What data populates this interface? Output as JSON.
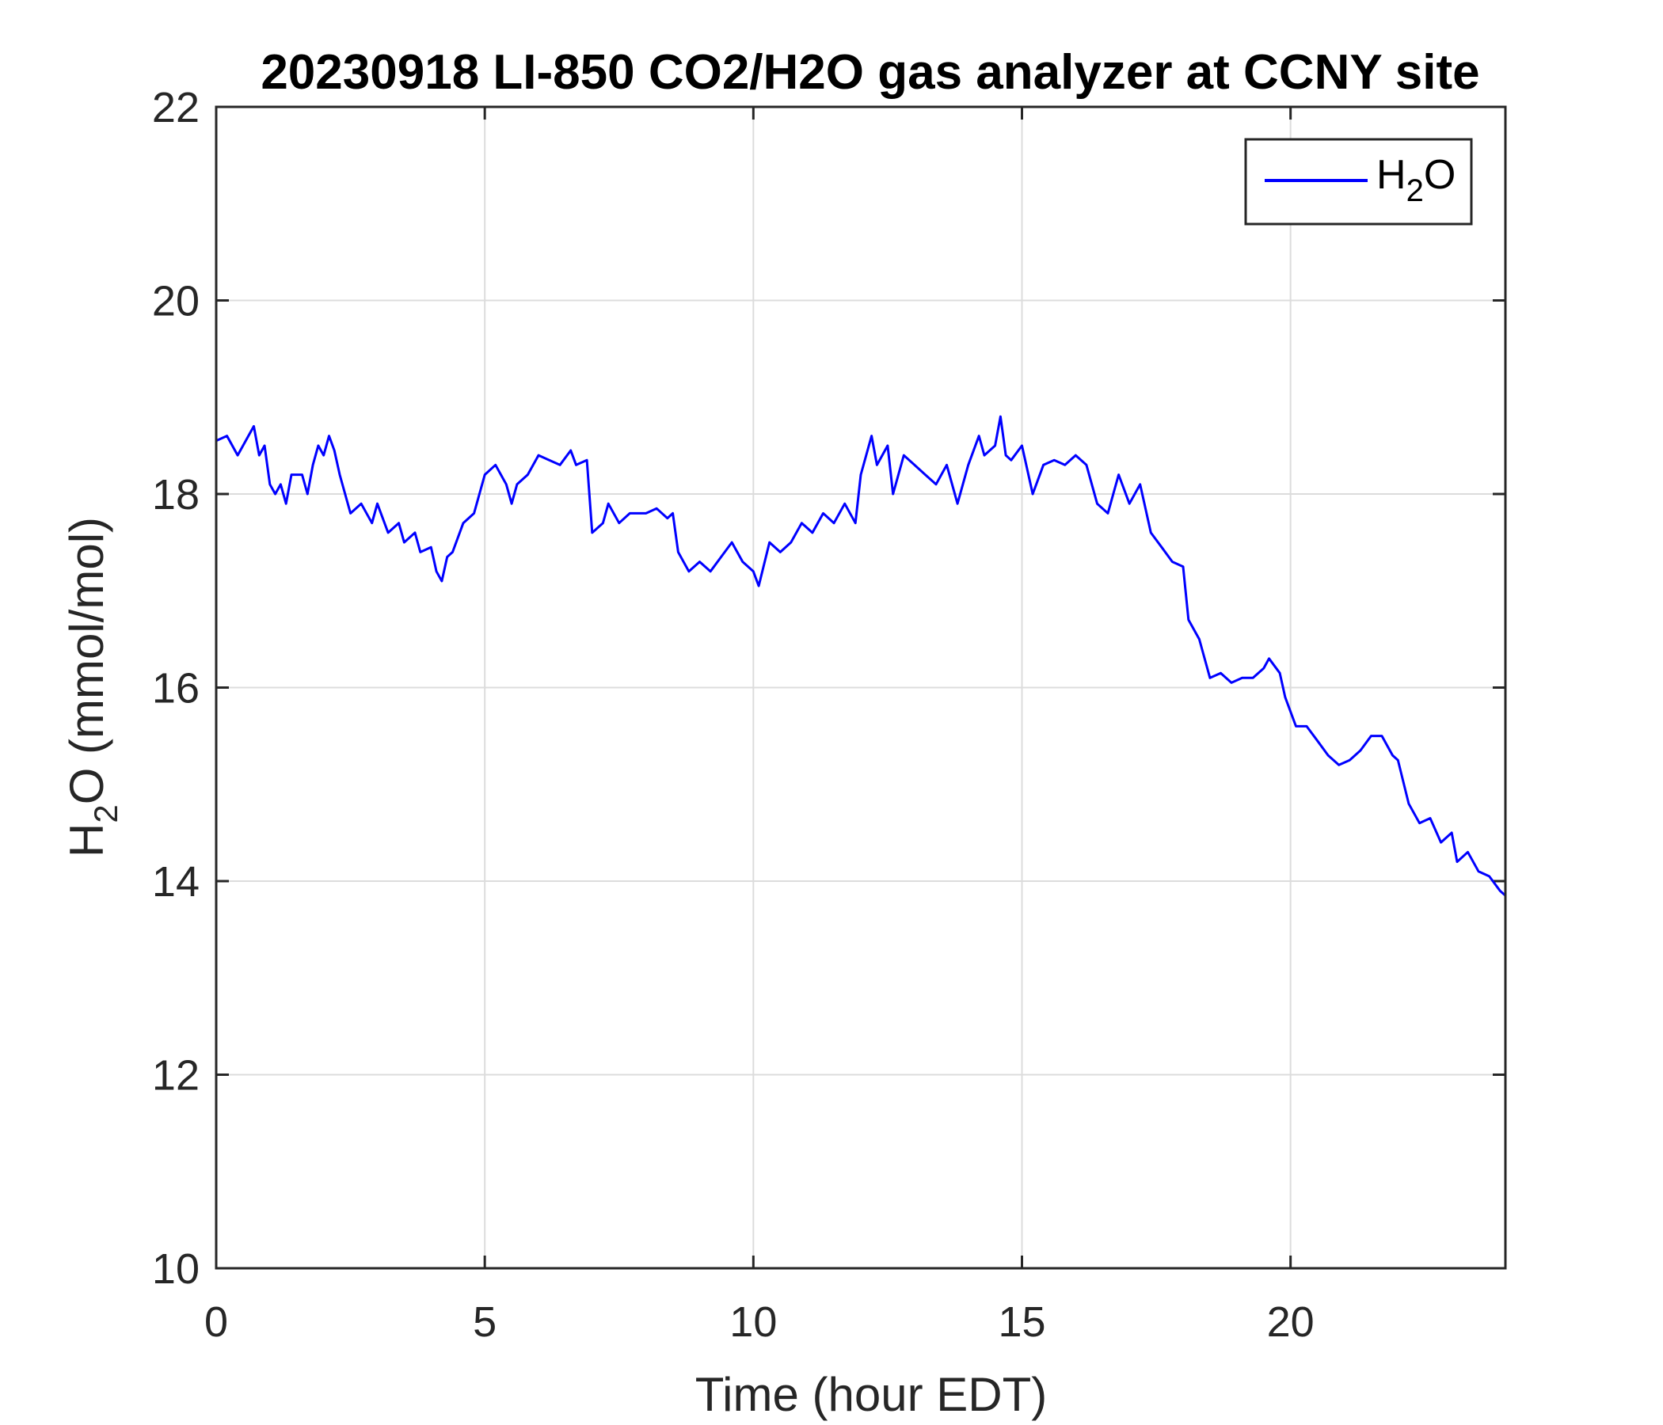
{
  "chart_data": {
    "type": "line",
    "title": "20230918 LI-850 CO2/H2O gas analyzer at CCNY site",
    "xlabel": "Time (hour EDT)",
    "ylabel": {
      "main": "H",
      "sub": "2",
      "rest": "O (mmol/mol)"
    },
    "xlim": [
      0,
      24
    ],
    "ylim": [
      10,
      22
    ],
    "xticks": [
      0,
      5,
      10,
      15,
      20
    ],
    "yticks": [
      10,
      12,
      14,
      16,
      18,
      20,
      22
    ],
    "grid": true,
    "legend_position": "top-right",
    "series": [
      {
        "name": {
          "main": "H",
          "sub": "2",
          "rest": "O"
        },
        "color": "#0000ff",
        "x": [
          0,
          0.2,
          0.4,
          0.6,
          0.7,
          0.8,
          0.9,
          1.0,
          1.1,
          1.2,
          1.3,
          1.4,
          1.6,
          1.7,
          1.8,
          1.9,
          2.0,
          2.1,
          2.2,
          2.3,
          2.4,
          2.5,
          2.7,
          2.9,
          3.0,
          3.2,
          3.4,
          3.5,
          3.7,
          3.8,
          4.0,
          4.1,
          4.2,
          4.3,
          4.4,
          4.6,
          4.8,
          5.0,
          5.2,
          5.4,
          5.5,
          5.6,
          5.8,
          6.0,
          6.2,
          6.4,
          6.6,
          6.7,
          6.9,
          7.0,
          7.2,
          7.3,
          7.5,
          7.7,
          8.0,
          8.2,
          8.4,
          8.5,
          8.6,
          8.8,
          9.0,
          9.2,
          9.4,
          9.6,
          9.8,
          10.0,
          10.1,
          10.3,
          10.5,
          10.7,
          10.9,
          11.1,
          11.3,
          11.5,
          11.7,
          11.9,
          12.0,
          12.2,
          12.3,
          12.5,
          12.6,
          12.8,
          13.0,
          13.2,
          13.4,
          13.6,
          13.8,
          14.0,
          14.2,
          14.3,
          14.5,
          14.6,
          14.7,
          14.8,
          15.0,
          15.2,
          15.4,
          15.6,
          15.8,
          16.0,
          16.2,
          16.4,
          16.6,
          16.8,
          17.0,
          17.2,
          17.4,
          17.6,
          17.8,
          18.0,
          18.1,
          18.3,
          18.5,
          18.7,
          18.9,
          19.1,
          19.3,
          19.5,
          19.6,
          19.8,
          19.9,
          20.1,
          20.3,
          20.5,
          20.7,
          20.9,
          21.1,
          21.3,
          21.5,
          21.7,
          21.9,
          22.0,
          22.2,
          22.4,
          22.6,
          22.8,
          23.0,
          23.1,
          23.3,
          23.5,
          23.7,
          23.9,
          24.0
        ],
        "y": [
          18.55,
          18.6,
          18.4,
          18.6,
          18.7,
          18.4,
          18.5,
          18.1,
          18.0,
          18.1,
          17.9,
          18.2,
          18.2,
          18.0,
          18.3,
          18.5,
          18.4,
          18.6,
          18.45,
          18.2,
          18.0,
          17.8,
          17.9,
          17.7,
          17.9,
          17.6,
          17.7,
          17.5,
          17.6,
          17.4,
          17.45,
          17.2,
          17.1,
          17.35,
          17.4,
          17.7,
          17.8,
          18.2,
          18.3,
          18.1,
          17.9,
          18.1,
          18.2,
          18.4,
          18.35,
          18.3,
          18.45,
          18.3,
          18.35,
          17.6,
          17.7,
          17.9,
          17.7,
          17.8,
          17.8,
          17.85,
          17.75,
          17.8,
          17.4,
          17.2,
          17.3,
          17.2,
          17.35,
          17.5,
          17.3,
          17.2,
          17.05,
          17.5,
          17.4,
          17.5,
          17.7,
          17.6,
          17.8,
          17.7,
          17.9,
          17.7,
          18.2,
          18.6,
          18.3,
          18.5,
          18.0,
          18.4,
          18.3,
          18.2,
          18.1,
          18.3,
          17.9,
          18.3,
          18.6,
          18.4,
          18.5,
          18.8,
          18.4,
          18.35,
          18.5,
          18.0,
          18.3,
          18.35,
          18.3,
          18.4,
          18.3,
          17.9,
          17.8,
          18.2,
          17.9,
          18.1,
          17.6,
          17.45,
          17.3,
          17.25,
          16.7,
          16.5,
          16.1,
          16.15,
          16.05,
          16.1,
          16.1,
          16.2,
          16.3,
          16.15,
          15.9,
          15.6,
          15.6,
          15.45,
          15.3,
          15.2,
          15.25,
          15.35,
          15.5,
          15.5,
          15.3,
          15.25,
          14.8,
          14.6,
          14.65,
          14.4,
          14.5,
          14.2,
          14.3,
          14.1,
          14.05,
          13.9,
          13.85
        ]
      }
    ]
  }
}
